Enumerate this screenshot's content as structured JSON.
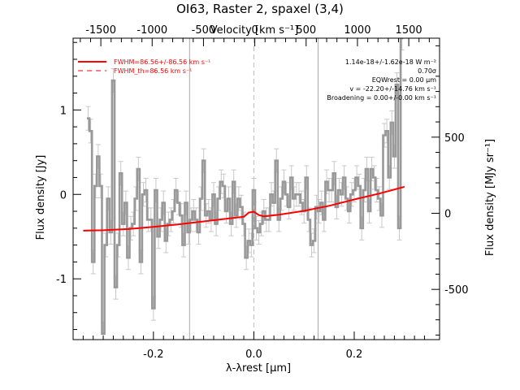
{
  "chart_data": {
    "type": "line",
    "title": "OI63, Raster 2, spaxel (3,4)",
    "xlabel": "λ-λrest [μm]",
    "ylabel": "Flux density [Jy]",
    "top_xlabel": "Velocity [km s⁻¹]",
    "right_ylabel": "Flux density [MJy sr⁻¹]",
    "xlim": [
      -0.36,
      0.37
    ],
    "ylim": [
      -1.72,
      1.85
    ],
    "top_xlim": [
      -1770,
      1800
    ],
    "right_ylim": [
      -830,
      1150
    ],
    "x_ticks": [
      -0.2,
      0.0,
      0.2
    ],
    "x_tick_labels": [
      "-0.2",
      "0.0",
      "0.2"
    ],
    "y_ticks": [
      -1,
      0,
      1
    ],
    "y_tick_labels": [
      "-1",
      "0",
      "1"
    ],
    "top_ticks": [
      -1500,
      -1000,
      -500,
      0,
      500,
      1000,
      1500
    ],
    "top_tick_labels": [
      "-1500",
      "-1000",
      "-500",
      "0",
      "500",
      "1000",
      "1500"
    ],
    "right_ticks": [
      -500,
      0,
      500
    ],
    "right_tick_labels": [
      "-500",
      "0",
      "500"
    ],
    "vertical_lines": [
      {
        "x": -0.128,
        "style": "solid",
        "color": "#aaaaaa"
      },
      {
        "x": 0.0,
        "style": "dashed",
        "color": "#bbbbbb"
      },
      {
        "x": 0.128,
        "style": "solid",
        "color": "#aaaaaa"
      }
    ],
    "legend_position": "top-left",
    "legend": [
      {
        "label": "FWHM=86.56+/-86.56 km s⁻¹",
        "style": "solid",
        "color": "#ff0000"
      },
      {
        "label": "FWHM_th=86.56 km s⁻¹",
        "style": "dashed",
        "color": "#ff0000"
      }
    ],
    "annotations": [
      "1.14e-18+/-1.62e-18 W m⁻²",
      "0.70σ",
      "EQWrest = 0.00 μm",
      "v = -22.20+/-14.76 km s⁻¹",
      "Broadening = 0.00+/-0.00 km s⁻¹"
    ],
    "series": [
      {
        "style": "steps",
        "color": "#999999",
        "x": [
          -0.33,
          -0.325,
          -0.32,
          -0.315,
          -0.31,
          -0.305,
          -0.3,
          -0.295,
          -0.29,
          -0.285,
          -0.28,
          -0.275,
          -0.27,
          -0.265,
          -0.26,
          -0.255,
          -0.25,
          -0.245,
          -0.24,
          -0.235,
          -0.23,
          -0.225,
          -0.22,
          -0.215,
          -0.21,
          -0.205,
          -0.2,
          -0.195,
          -0.19,
          -0.185,
          -0.18,
          -0.175,
          -0.17,
          -0.165,
          -0.16,
          -0.155,
          -0.15,
          -0.145,
          -0.14,
          -0.135,
          -0.13,
          -0.125,
          -0.12,
          -0.115,
          -0.11,
          -0.105,
          -0.1,
          -0.095,
          -0.09,
          -0.085,
          -0.08,
          -0.075,
          -0.07,
          -0.065,
          -0.06,
          -0.055,
          -0.05,
          -0.045,
          -0.04,
          -0.035,
          -0.03,
          -0.025,
          -0.02,
          -0.015,
          -0.01,
          -0.005,
          0.0,
          0.005,
          0.01,
          0.015,
          0.02,
          0.025,
          0.03,
          0.035,
          0.04,
          0.045,
          0.05,
          0.055,
          0.06,
          0.065,
          0.07,
          0.075,
          0.08,
          0.085,
          0.09,
          0.095,
          0.1,
          0.105,
          0.11,
          0.115,
          0.12,
          0.125,
          0.13,
          0.135,
          0.14,
          0.145,
          0.15,
          0.155,
          0.16,
          0.165,
          0.17,
          0.175,
          0.18,
          0.185,
          0.19,
          0.195,
          0.2,
          0.205,
          0.21,
          0.215,
          0.22,
          0.225,
          0.23,
          0.235,
          0.24,
          0.245,
          0.25,
          0.255,
          0.26,
          0.265,
          0.27,
          0.275,
          0.28,
          0.285,
          0.29,
          0.295
        ],
        "y": [
          0.9,
          0.75,
          -0.8,
          0.1,
          0.45,
          0.1,
          -1.65,
          -0.6,
          -0.05,
          -0.45,
          1.35,
          -1.1,
          -0.6,
          0.25,
          -0.35,
          -0.1,
          -0.75,
          -0.4,
          -0.35,
          -0.05,
          0.3,
          -0.8,
          0.0,
          0.05,
          -0.3,
          -0.3,
          -1.35,
          0.05,
          -0.5,
          -0.3,
          -0.1,
          -0.55,
          -0.35,
          -0.3,
          -0.2,
          0.05,
          -0.1,
          -0.25,
          -0.6,
          -0.1,
          -0.45,
          -0.3,
          -0.2,
          -0.3,
          -0.45,
          -0.05,
          0.4,
          -0.25,
          -0.2,
          -0.3,
          0.0,
          -0.35,
          -0.05,
          0.15,
          0.1,
          -0.2,
          -0.05,
          -0.35,
          0.15,
          -0.25,
          -0.05,
          -0.15,
          -0.35,
          -0.75,
          -0.55,
          -0.6,
          0.05,
          -0.4,
          -0.45,
          -0.35,
          -0.2,
          -0.3,
          -0.3,
          0.0,
          -0.1,
          0.4,
          -0.3,
          -0.05,
          0.15,
          0.0,
          -0.15,
          0.2,
          -0.05,
          0.0,
          0.0,
          -0.1,
          -0.2,
          0.2,
          -0.3,
          -0.6,
          -0.55,
          -0.15,
          -0.2,
          -0.1,
          -0.3,
          0.15,
          0.05,
          0.05,
          0.25,
          -0.15,
          0.05,
          0.0,
          0.2,
          -0.05,
          -0.2,
          0.0,
          0.05,
          0.2,
          0.1,
          -0.4,
          0.05,
          0.3,
          -0.2,
          0.3,
          0.2,
          0.05,
          -0.05,
          -0.25,
          0.7,
          0.75,
          0.2,
          0.85,
          0.45,
          1.3,
          -0.4,
          1.85
        ]
      },
      {
        "style": "line",
        "color": "#ff0000",
        "x": [
          -0.34,
          -0.3,
          -0.25,
          -0.2,
          -0.15,
          -0.1,
          -0.05,
          -0.02,
          -0.01,
          0.0,
          0.01,
          0.02,
          0.05,
          0.1,
          0.15,
          0.2,
          0.25,
          0.3
        ],
        "y": [
          -0.43,
          -0.425,
          -0.41,
          -0.385,
          -0.355,
          -0.32,
          -0.285,
          -0.265,
          -0.215,
          -0.205,
          -0.245,
          -0.26,
          -0.24,
          -0.195,
          -0.135,
          -0.06,
          0.01,
          0.09
        ]
      }
    ]
  }
}
